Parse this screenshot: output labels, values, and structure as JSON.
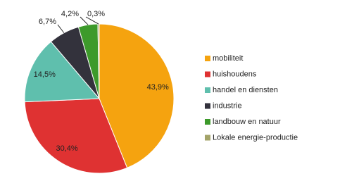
{
  "chart_data": {
    "type": "pie",
    "categories": [
      "mobiliteit",
      "huishoudens",
      "handel en diensten",
      "industrie",
      "landbouw en natuur",
      "Lokale energie-productie"
    ],
    "values": [
      43.9,
      30.4,
      14.5,
      6.7,
      4.2,
      0.3
    ],
    "value_labels": [
      "43,9%",
      "30,4%",
      "14,5%",
      "6,7%",
      "4,2%",
      "0,3%"
    ],
    "colors": [
      "#f5a30f",
      "#df3232",
      "#5fbfad",
      "#33323c",
      "#3d9a2b",
      "#a3a368"
    ],
    "legend": "right"
  }
}
